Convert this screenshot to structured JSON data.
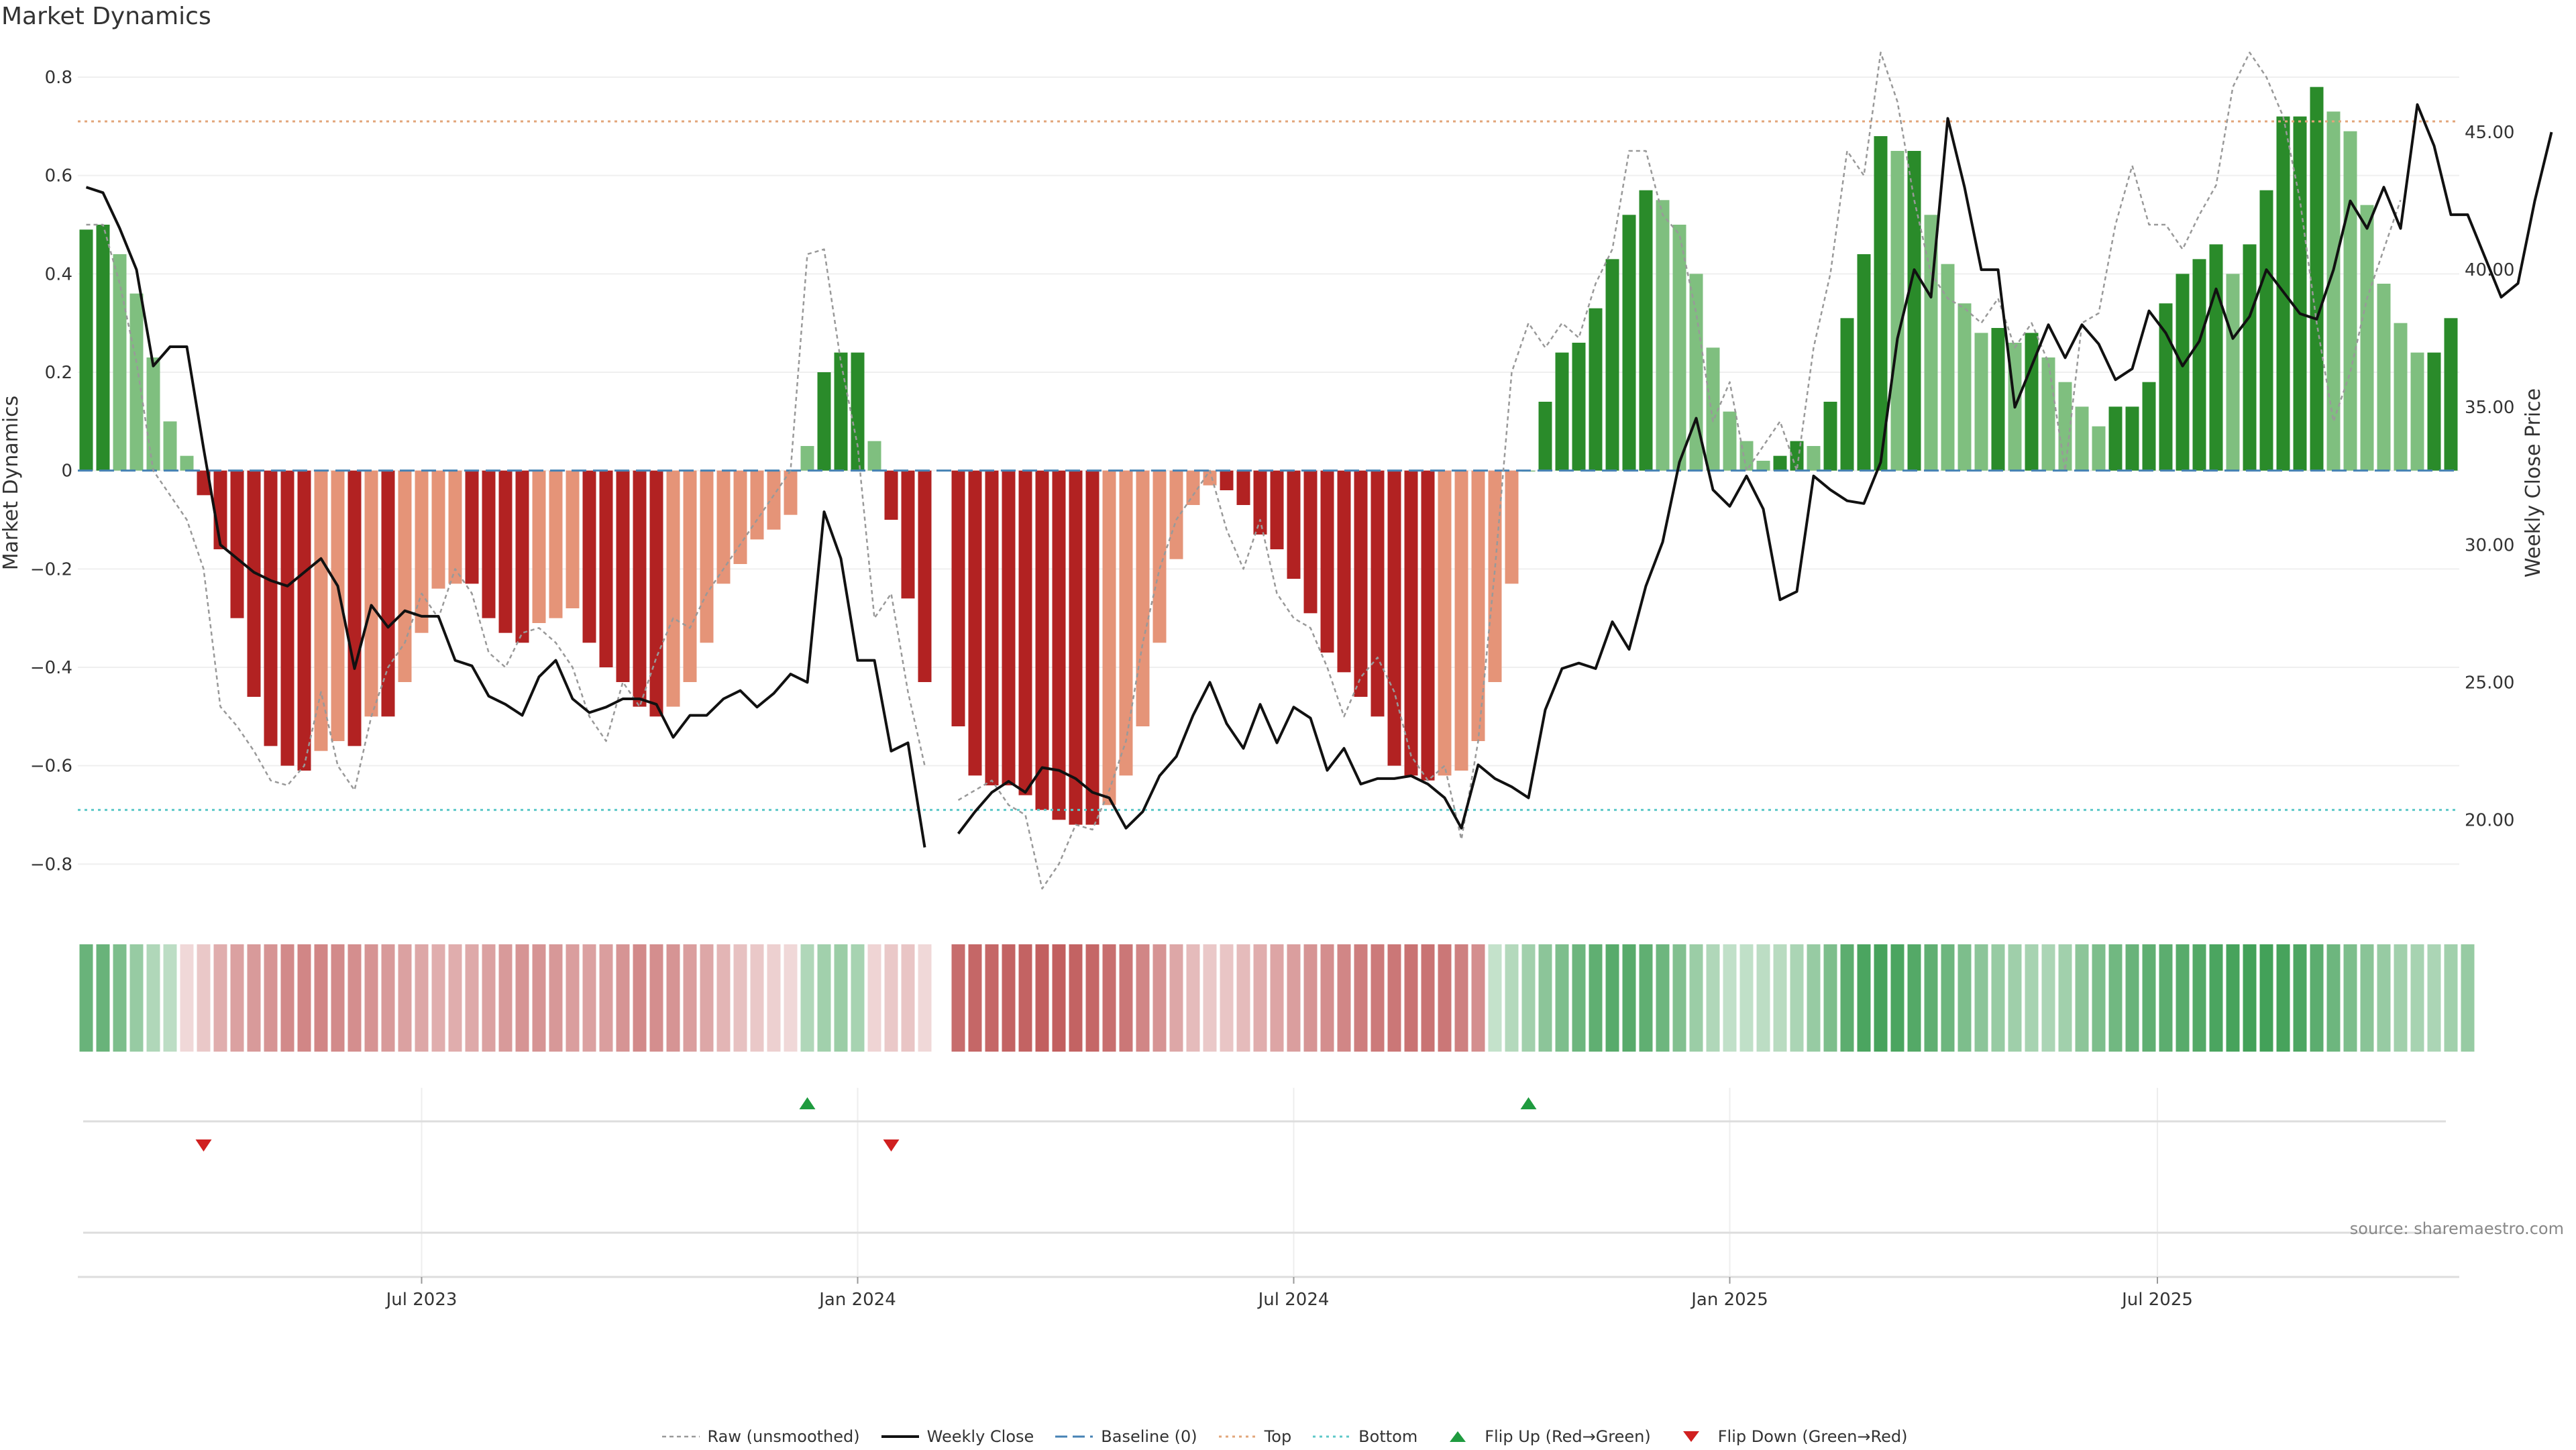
{
  "title": "Market Dynamics",
  "source": "source: sharemaestro.com",
  "colors": {
    "strong_green": "#2a8b2a",
    "light_green": "#7fbf7f",
    "strong_red": "#b22222",
    "light_red": "#e59478",
    "close_line": "#111111",
    "raw_line": "#999999",
    "baseline": "#4682b4",
    "top_line": "#e2a67a",
    "bottom_line": "#5cc8c8",
    "flip_up": "#1f9b3f",
    "flip_down": "#d02020"
  },
  "legend": [
    {
      "key": "raw",
      "label": "Raw (unsmoothed)"
    },
    {
      "key": "close",
      "label": "Weekly Close"
    },
    {
      "key": "baseline",
      "label": "Baseline (0)"
    },
    {
      "key": "top",
      "label": "Top"
    },
    {
      "key": "bottom",
      "label": "Bottom"
    },
    {
      "key": "flip_up",
      "label": "Flip Up (Red→Green)"
    },
    {
      "key": "flip_down",
      "label": "Flip Down (Green→Red)"
    }
  ],
  "chart_data": {
    "type": "bar",
    "ylabel": "Market Dynamics",
    "y2label": "Weekly Close Price",
    "ylim": [
      -0.85,
      0.8
    ],
    "y2lim": [
      17.5,
      47.0
    ],
    "yticks": [
      "0.8",
      "0.6",
      "0.4",
      "0.2",
      "0",
      "−0.2",
      "−0.4",
      "−0.6",
      "−0.8"
    ],
    "yticks_values": [
      0.8,
      0.6,
      0.4,
      0.2,
      0,
      -0.2,
      -0.4,
      -0.6,
      -0.8
    ],
    "y2ticks": [
      "45.00",
      "40.00",
      "35.00",
      "30.00",
      "25.00",
      "20.00"
    ],
    "y2ticks_values": [
      45,
      40,
      35,
      30,
      25,
      20
    ],
    "xticks": [
      "Jul 2023",
      "Jan 2024",
      "Jul 2024",
      "Jan 2025",
      "Jul 2025"
    ],
    "xticks_values": [
      20,
      46,
      72,
      98,
      123.5
    ],
    "top_level": 0.71,
    "bottom_level": -0.69,
    "baseline": 0,
    "gap_index": 52,
    "bars": [
      0.49,
      0.5,
      0.44,
      0.36,
      0.23,
      0.1,
      0.03,
      -0.05,
      -0.16,
      -0.3,
      -0.46,
      -0.56,
      -0.6,
      -0.61,
      -0.57,
      -0.55,
      -0.56,
      -0.5,
      -0.5,
      -0.43,
      -0.33,
      -0.24,
      -0.23,
      -0.23,
      -0.3,
      -0.33,
      -0.35,
      -0.31,
      -0.3,
      -0.28,
      -0.35,
      -0.4,
      -0.43,
      -0.48,
      -0.5,
      -0.48,
      -0.43,
      -0.35,
      -0.23,
      -0.19,
      -0.14,
      -0.12,
      -0.09,
      0.05,
      0.2,
      0.24,
      0.24,
      0.06,
      -0.1,
      -0.26,
      -0.43,
      null,
      -0.52,
      -0.62,
      -0.64,
      -0.64,
      -0.66,
      -0.69,
      -0.71,
      -0.72,
      -0.72,
      -0.68,
      -0.62,
      -0.52,
      -0.35,
      -0.18,
      -0.07,
      -0.03,
      -0.04,
      -0.07,
      -0.13,
      -0.16,
      -0.22,
      -0.29,
      -0.37,
      -0.41,
      -0.46,
      -0.5,
      -0.6,
      -0.62,
      -0.63,
      -0.62,
      -0.61,
      -0.55,
      -0.43,
      -0.23,
      0.0,
      0.14,
      0.24,
      0.26,
      0.33,
      0.43,
      0.52,
      0.57,
      0.55,
      0.5,
      0.4,
      0.25,
      0.12,
      0.06,
      0.02,
      0.03,
      0.06,
      0.05,
      0.14,
      0.31,
      0.44,
      0.68,
      0.65,
      0.65,
      0.52,
      0.42,
      0.34,
      0.28,
      0.29,
      0.26,
      0.28,
      0.23,
      0.18,
      0.13,
      0.09,
      0.13,
      0.13,
      0.18,
      0.34,
      0.4,
      0.43,
      0.46,
      0.4,
      0.46,
      0.57,
      0.72,
      0.72,
      0.78,
      0.73,
      0.69,
      0.54,
      0.38,
      0.3,
      0.24,
      0.24,
      0.31
    ],
    "raw": [
      0.5,
      0.5,
      0.38,
      0.22,
      0.0,
      -0.05,
      -0.1,
      -0.2,
      -0.48,
      -0.52,
      -0.57,
      -0.63,
      -0.64,
      -0.6,
      -0.45,
      -0.6,
      -0.65,
      -0.5,
      -0.4,
      -0.35,
      -0.25,
      -0.3,
      -0.2,
      -0.25,
      -0.37,
      -0.4,
      -0.33,
      -0.32,
      -0.35,
      -0.4,
      -0.5,
      -0.55,
      -0.43,
      -0.48,
      -0.38,
      -0.3,
      -0.32,
      -0.25,
      -0.2,
      -0.15,
      -0.1,
      -0.05,
      0.0,
      0.44,
      0.45,
      0.22,
      0.05,
      -0.3,
      -0.25,
      -0.45,
      -0.6,
      null,
      -0.67,
      -0.65,
      -0.63,
      -0.68,
      -0.7,
      -0.85,
      -0.8,
      -0.72,
      -0.73,
      -0.65,
      -0.55,
      -0.35,
      -0.2,
      -0.1,
      -0.05,
      0.0,
      -0.12,
      -0.2,
      -0.1,
      -0.25,
      -0.3,
      -0.32,
      -0.4,
      -0.5,
      -0.42,
      -0.38,
      -0.45,
      -0.58,
      -0.63,
      -0.6,
      -0.75,
      -0.55,
      -0.2,
      0.2,
      0.3,
      0.25,
      0.3,
      0.27,
      0.38,
      0.45,
      0.65,
      0.65,
      0.52,
      0.48,
      0.32,
      0.1,
      0.18,
      0.0,
      0.05,
      0.1,
      0.0,
      0.25,
      0.4,
      0.65,
      0.6,
      0.85,
      0.75,
      0.55,
      0.4,
      0.35,
      0.33,
      0.3,
      0.35,
      0.25,
      0.3,
      0.22,
      0.0,
      0.3,
      0.32,
      0.5,
      0.62,
      0.5,
      0.5,
      0.45,
      0.52,
      0.58,
      0.78,
      0.85,
      0.8,
      0.72,
      0.55,
      0.3,
      0.1,
      0.2,
      0.35,
      0.45,
      0.55
    ],
    "close": [
      43.0,
      42.8,
      41.5,
      40.0,
      36.5,
      37.2,
      37.2,
      33.5,
      30.0,
      29.5,
      29.0,
      28.7,
      28.5,
      29.0,
      29.5,
      28.5,
      25.5,
      27.8,
      27.0,
      27.6,
      27.4,
      27.4,
      25.8,
      25.6,
      24.5,
      24.2,
      23.8,
      25.2,
      25.8,
      24.4,
      23.9,
      24.1,
      24.4,
      24.4,
      24.2,
      23.0,
      23.8,
      23.8,
      24.4,
      24.7,
      24.1,
      24.6,
      25.3,
      25.0,
      31.2,
      29.5,
      25.8,
      25.8,
      22.5,
      22.8,
      19.0,
      null,
      19.5,
      20.3,
      21.0,
      21.4,
      21.0,
      21.9,
      21.8,
      21.5,
      21.0,
      20.8,
      19.7,
      20.3,
      21.6,
      22.3,
      23.8,
      25.0,
      23.5,
      22.6,
      24.2,
      22.8,
      24.1,
      23.7,
      21.8,
      22.6,
      21.3,
      21.5,
      21.5,
      21.6,
      21.3,
      20.8,
      19.7,
      22.0,
      21.5,
      21.2,
      20.8,
      24.0,
      25.5,
      25.7,
      25.5,
      27.2,
      26.2,
      28.5,
      30.1,
      33.0,
      34.6,
      32.0,
      31.4,
      32.5,
      31.3,
      28.0,
      28.3,
      32.5,
      32.0,
      31.6,
      31.5,
      33.0,
      37.5,
      40.0,
      39.0,
      45.5,
      43.0,
      40.0,
      40.0,
      35.0,
      36.5,
      38.0,
      36.8,
      38.0,
      37.3,
      36.0,
      36.4,
      38.5,
      37.7,
      36.5,
      37.4,
      39.3,
      37.5,
      38.3,
      40.0,
      39.2,
      38.4,
      38.2,
      40.0,
      42.5,
      41.5,
      43.0,
      41.5,
      46.0,
      44.5,
      42.0,
      42.0,
      40.5,
      39.0,
      39.5,
      42.5,
      45.0
    ],
    "strip": [
      0.72,
      0.72,
      0.62,
      0.5,
      0.38,
      0.32,
      -0.2,
      -0.28,
      -0.42,
      -0.48,
      -0.52,
      -0.55,
      -0.6,
      -0.62,
      -0.62,
      -0.6,
      -0.58,
      -0.55,
      -0.52,
      -0.48,
      -0.45,
      -0.42,
      -0.42,
      -0.44,
      -0.48,
      -0.52,
      -0.55,
      -0.55,
      -0.53,
      -0.5,
      -0.48,
      -0.5,
      -0.55,
      -0.6,
      -0.58,
      -0.55,
      -0.5,
      -0.45,
      -0.38,
      -0.32,
      -0.28,
      -0.24,
      -0.2,
      0.38,
      0.45,
      0.48,
      0.42,
      -0.22,
      -0.28,
      -0.3,
      -0.2,
      null,
      -0.75,
      -0.78,
      -0.78,
      -0.8,
      -0.8,
      -0.82,
      -0.82,
      -0.8,
      -0.78,
      -0.74,
      -0.7,
      -0.62,
      -0.55,
      -0.45,
      -0.35,
      -0.28,
      -0.3,
      -0.35,
      -0.42,
      -0.46,
      -0.5,
      -0.55,
      -0.58,
      -0.62,
      -0.66,
      -0.68,
      -0.7,
      -0.72,
      -0.72,
      -0.7,
      -0.65,
      -0.58,
      0.28,
      0.36,
      0.45,
      0.55,
      0.62,
      0.7,
      0.76,
      0.8,
      0.8,
      0.76,
      0.7,
      0.6,
      0.48,
      0.38,
      0.3,
      0.3,
      0.32,
      0.34,
      0.4,
      0.5,
      0.62,
      0.78,
      0.86,
      0.88,
      0.86,
      0.82,
      0.76,
      0.7,
      0.62,
      0.55,
      0.5,
      0.46,
      0.42,
      0.4,
      0.45,
      0.55,
      0.62,
      0.68,
      0.72,
      0.76,
      0.78,
      0.8,
      0.82,
      0.86,
      0.88,
      0.9,
      0.9,
      0.88,
      0.85,
      0.78,
      0.7,
      0.62,
      0.56,
      0.5,
      0.45,
      0.42,
      0.4,
      0.45,
      0.5
    ],
    "flip_up_indices": [
      43,
      86
    ],
    "flip_down_indices": [
      7,
      48
    ]
  }
}
